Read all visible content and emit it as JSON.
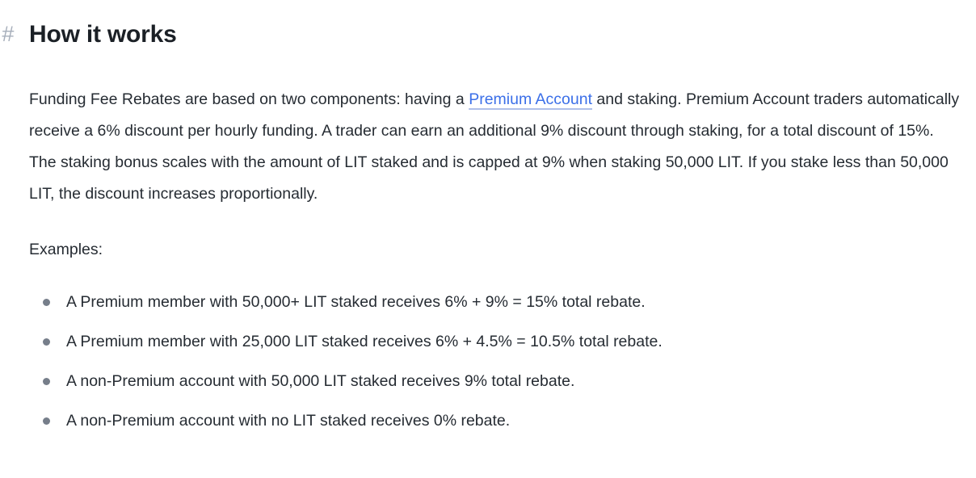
{
  "page": {
    "heading": {
      "anchor": "#",
      "title": "How it works"
    },
    "intro": {
      "pre_link": "Funding Fee Rebates are based on two components: having a ",
      "link_text": "Premium Account",
      "post_link": " and staking. Premium Account traders automatically receive a 6% discount per hourly funding. A trader can earn an additional 9% discount through staking, for a total discount of 15%. The staking bonus scales with the amount of LIT staked and is capped at 9% when staking 50,000 LIT. If you stake less than 50,000 LIT, the discount increases proportionally."
    },
    "examples_label": "Examples:",
    "examples": [
      "A Premium member with 50,000+ LIT staked receives 6% + 9% = 15% total rebate.",
      "A Premium member with 25,000 LIT staked receives 6% + 4.5% = 10.5% total rebate.",
      "A non-Premium account with 50,000 LIT staked receives 9% total rebate.",
      "A non-Premium account with no LIT staked receives 0% rebate."
    ],
    "colors": {
      "background": "#ffffff",
      "heading_text": "#1b2026",
      "body_text": "#262c33",
      "link": "#3b6fe8",
      "anchor_hash": "#a7afbb",
      "bullet": "#767e8a"
    }
  }
}
